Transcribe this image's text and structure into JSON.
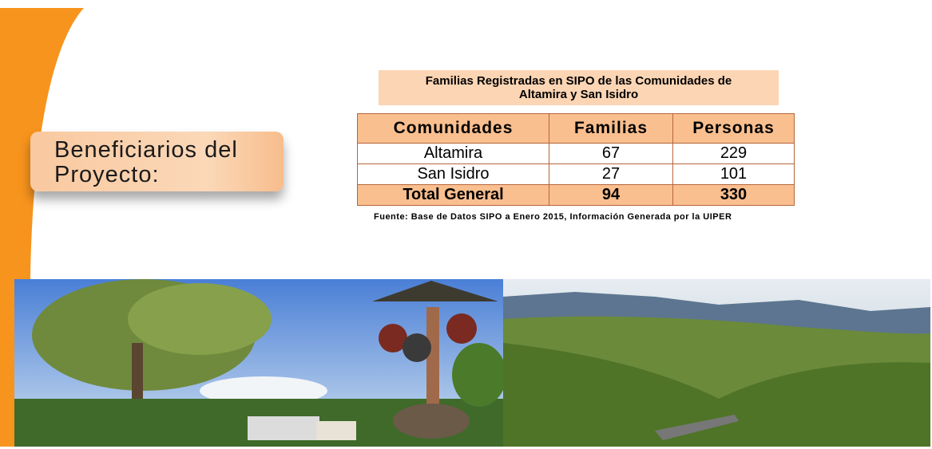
{
  "slide": {
    "heading": "Beneficiarios del Proyecto:",
    "table_title": "Familias Registradas en SIPO de las Comunidades de Altamira y San Isidro",
    "table": {
      "header": [
        "Comunidades",
        "Familias",
        "Personas"
      ],
      "rows": [
        [
          "Altamira",
          67,
          229
        ],
        [
          "San Isidro",
          27,
          101
        ]
      ],
      "total": [
        "Total General",
        94,
        330
      ]
    },
    "source": "Fuente: Base de Datos SIPO a Enero 2015, Información Generada por la UIPER"
  }
}
